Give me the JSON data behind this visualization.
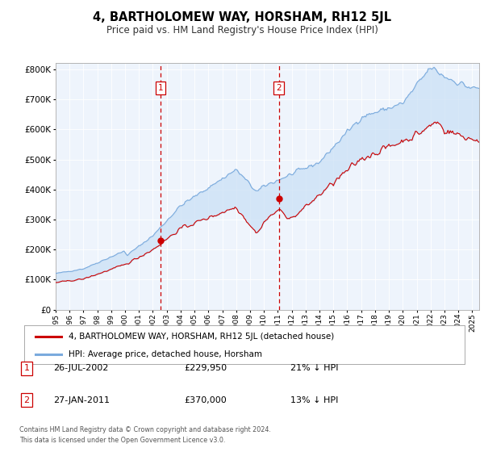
{
  "title": "4, BARTHOLOMEW WAY, HORSHAM, RH12 5JL",
  "subtitle": "Price paid vs. HM Land Registry's House Price Index (HPI)",
  "legend_line1": "4, BARTHOLOMEW WAY, HORSHAM, RH12 5JL (detached house)",
  "legend_line2": "HPI: Average price, detached house, Horsham",
  "footer1": "Contains HM Land Registry data © Crown copyright and database right 2024.",
  "footer2": "This data is licensed under the Open Government Licence v3.0.",
  "transaction1_date": "26-JUL-2002",
  "transaction1_price": "£229,950",
  "transaction1_hpi": "21% ↓ HPI",
  "transaction2_date": "27-JAN-2011",
  "transaction2_price": "£370,000",
  "transaction2_hpi": "13% ↓ HPI",
  "vline1_x": 2002.56,
  "vline2_x": 2011.07,
  "marker1_y": 229950,
  "marker2_y": 370000,
  "red_color": "#cc0000",
  "blue_color": "#7aaadd",
  "fill_blue": "#c8dff5",
  "background_color": "#eef4fc",
  "ylim": [
    0,
    820000
  ],
  "xlim": [
    1995.0,
    2025.5
  ]
}
